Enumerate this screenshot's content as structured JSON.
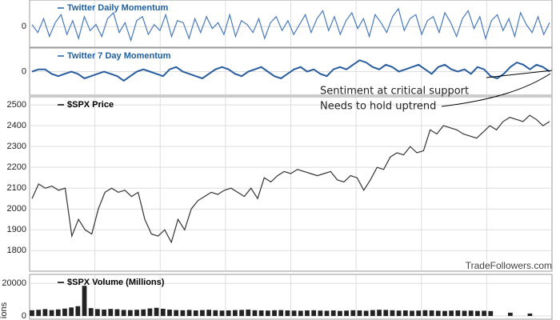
{
  "chart_data": [
    {
      "type": "line",
      "title": "Twitter Daily Momentum",
      "color": "#4a7ab8",
      "ylim": [
        -1,
        1.3
      ],
      "yticks": [
        0
      ],
      "grid": true,
      "values": [
        0.1,
        -0.3,
        0.4,
        -0.5,
        0.2,
        0.6,
        -0.4,
        0.3,
        -0.6,
        0.5,
        -0.2,
        0.1,
        -0.5,
        0.4,
        0.7,
        -0.3,
        0.2,
        -0.7,
        0.3,
        0.5,
        -0.4,
        0.1,
        -0.2,
        0.6,
        -0.5,
        0.3,
        0.2,
        -0.6,
        0.4,
        -0.3,
        0.5,
        -0.1,
        0.2,
        -0.4,
        0.6,
        -0.5,
        0.3,
        0.1,
        -0.3,
        0.4,
        -0.6,
        0.2,
        0.5,
        -0.2,
        0.3,
        -0.4,
        0.1,
        0.6,
        -0.3,
        0.4,
        0.8,
        -0.2,
        0.5,
        -0.4,
        0.3,
        0.7,
        -0.1,
        0.4,
        -0.5,
        0.6,
        0.2,
        -0.3,
        0.5,
        0.9,
        -0.2,
        0.4,
        0.6,
        -0.4,
        0.3,
        0.5,
        -0.3,
        0.7,
        0.2,
        -0.5,
        0.4,
        0.8,
        -0.1,
        0.5,
        -0.6,
        0.3,
        0.6,
        -0.2,
        0.4,
        -0.5,
        0.7,
        0.1,
        -0.3,
        0.5,
        -0.4,
        0.2
      ]
    },
    {
      "type": "line",
      "title": "Twitter 7 Day Momentum",
      "color": "#2a5d9e",
      "ylim": [
        -1,
        1
      ],
      "yticks": [
        0
      ],
      "grid": true,
      "values": [
        0,
        0.1,
        0.1,
        -0.1,
        -0.2,
        -0.1,
        0,
        -0.1,
        -0.3,
        -0.2,
        -0.1,
        0,
        -0.1,
        -0.2,
        -0.4,
        -0.2,
        0,
        0.1,
        0,
        -0.1,
        -0.2,
        0.1,
        0.2,
        0,
        -0.1,
        -0.2,
        -0.3,
        -0.1,
        0.1,
        0.2,
        0.1,
        -0.1,
        -0.2,
        0,
        0.1,
        0.2,
        0,
        -0.2,
        -0.3,
        -0.1,
        0.1,
        0.2,
        0,
        0.1,
        -0.1,
        -0.2,
        0.1,
        0.2,
        0.1,
        0.3,
        0.5,
        0.4,
        0.2,
        0.1,
        0.3,
        0.2,
        0,
        0.1,
        0.2,
        0.3,
        0.1,
        -0.1,
        0.2,
        0.3,
        0.1,
        0,
        0.1,
        -0.1,
        0.2,
        0.1,
        -0.2,
        -0.3,
        -0.1,
        0.2,
        0.4,
        0.3,
        0.1,
        0.3,
        0.2,
        0
      ],
      "annotations": [
        "Sentiment at critical support",
        "Needs to hold uptrend"
      ]
    },
    {
      "type": "line",
      "title": "$SPX Price",
      "color": "#333333",
      "ylim": [
        1705,
        2535
      ],
      "yticks": [
        1800,
        1900,
        2000,
        2100,
        2200,
        2300,
        2400,
        2500
      ],
      "grid": true,
      "values": [
        2050,
        2120,
        2100,
        2110,
        2090,
        2100,
        1870,
        1950,
        1900,
        1880,
        2000,
        2080,
        2100,
        2080,
        2090,
        2060,
        2080,
        1950,
        1880,
        1870,
        1900,
        1840,
        1950,
        1900,
        2000,
        2040,
        2060,
        2080,
        2070,
        2090,
        2100,
        2080,
        2060,
        2100,
        2050,
        2150,
        2130,
        2160,
        2180,
        2170,
        2190,
        2180,
        2170,
        2160,
        2170,
        2180,
        2140,
        2130,
        2160,
        2150,
        2090,
        2140,
        2200,
        2190,
        2250,
        2270,
        2260,
        2300,
        2270,
        2280,
        2380,
        2360,
        2400,
        2390,
        2380,
        2360,
        2350,
        2340,
        2370,
        2400,
        2380,
        2420,
        2440,
        2430,
        2420,
        2450,
        2430,
        2400,
        2420
      ],
      "watermark": "TradeFollowers.com"
    },
    {
      "type": "bar",
      "title": "$SPX Volume (Millions)",
      "ylabel": "ions",
      "color": "#222222",
      "ylim": [
        -1500,
        25000
      ],
      "yticks": [
        0,
        20000
      ],
      "grid": true,
      "values": [
        3500,
        3800,
        4200,
        3600,
        4000,
        4500,
        5200,
        6000,
        18500,
        4800,
        4200,
        3900,
        4300,
        4100,
        3700,
        3600,
        3800,
        4000,
        4600,
        5000,
        4400,
        3900,
        3600,
        3500,
        3700,
        3400,
        3600,
        3800,
        3500,
        3300,
        3400,
        3600,
        3700,
        3900,
        3500,
        3400,
        3300,
        3500,
        3600,
        3400,
        3300,
        3200,
        3400,
        3500,
        3300,
        3200,
        3400,
        3100,
        3300,
        3500,
        3400,
        3200,
        3600,
        3800,
        3700,
        3500,
        3300,
        3400,
        3200,
        3300,
        3500,
        3400,
        3200,
        3100,
        3300,
        3400,
        3200,
        3300,
        3100,
        3200,
        3000,
        null,
        null,
        2000,
        null,
        null,
        1500,
        null,
        null,
        null
      ]
    }
  ]
}
